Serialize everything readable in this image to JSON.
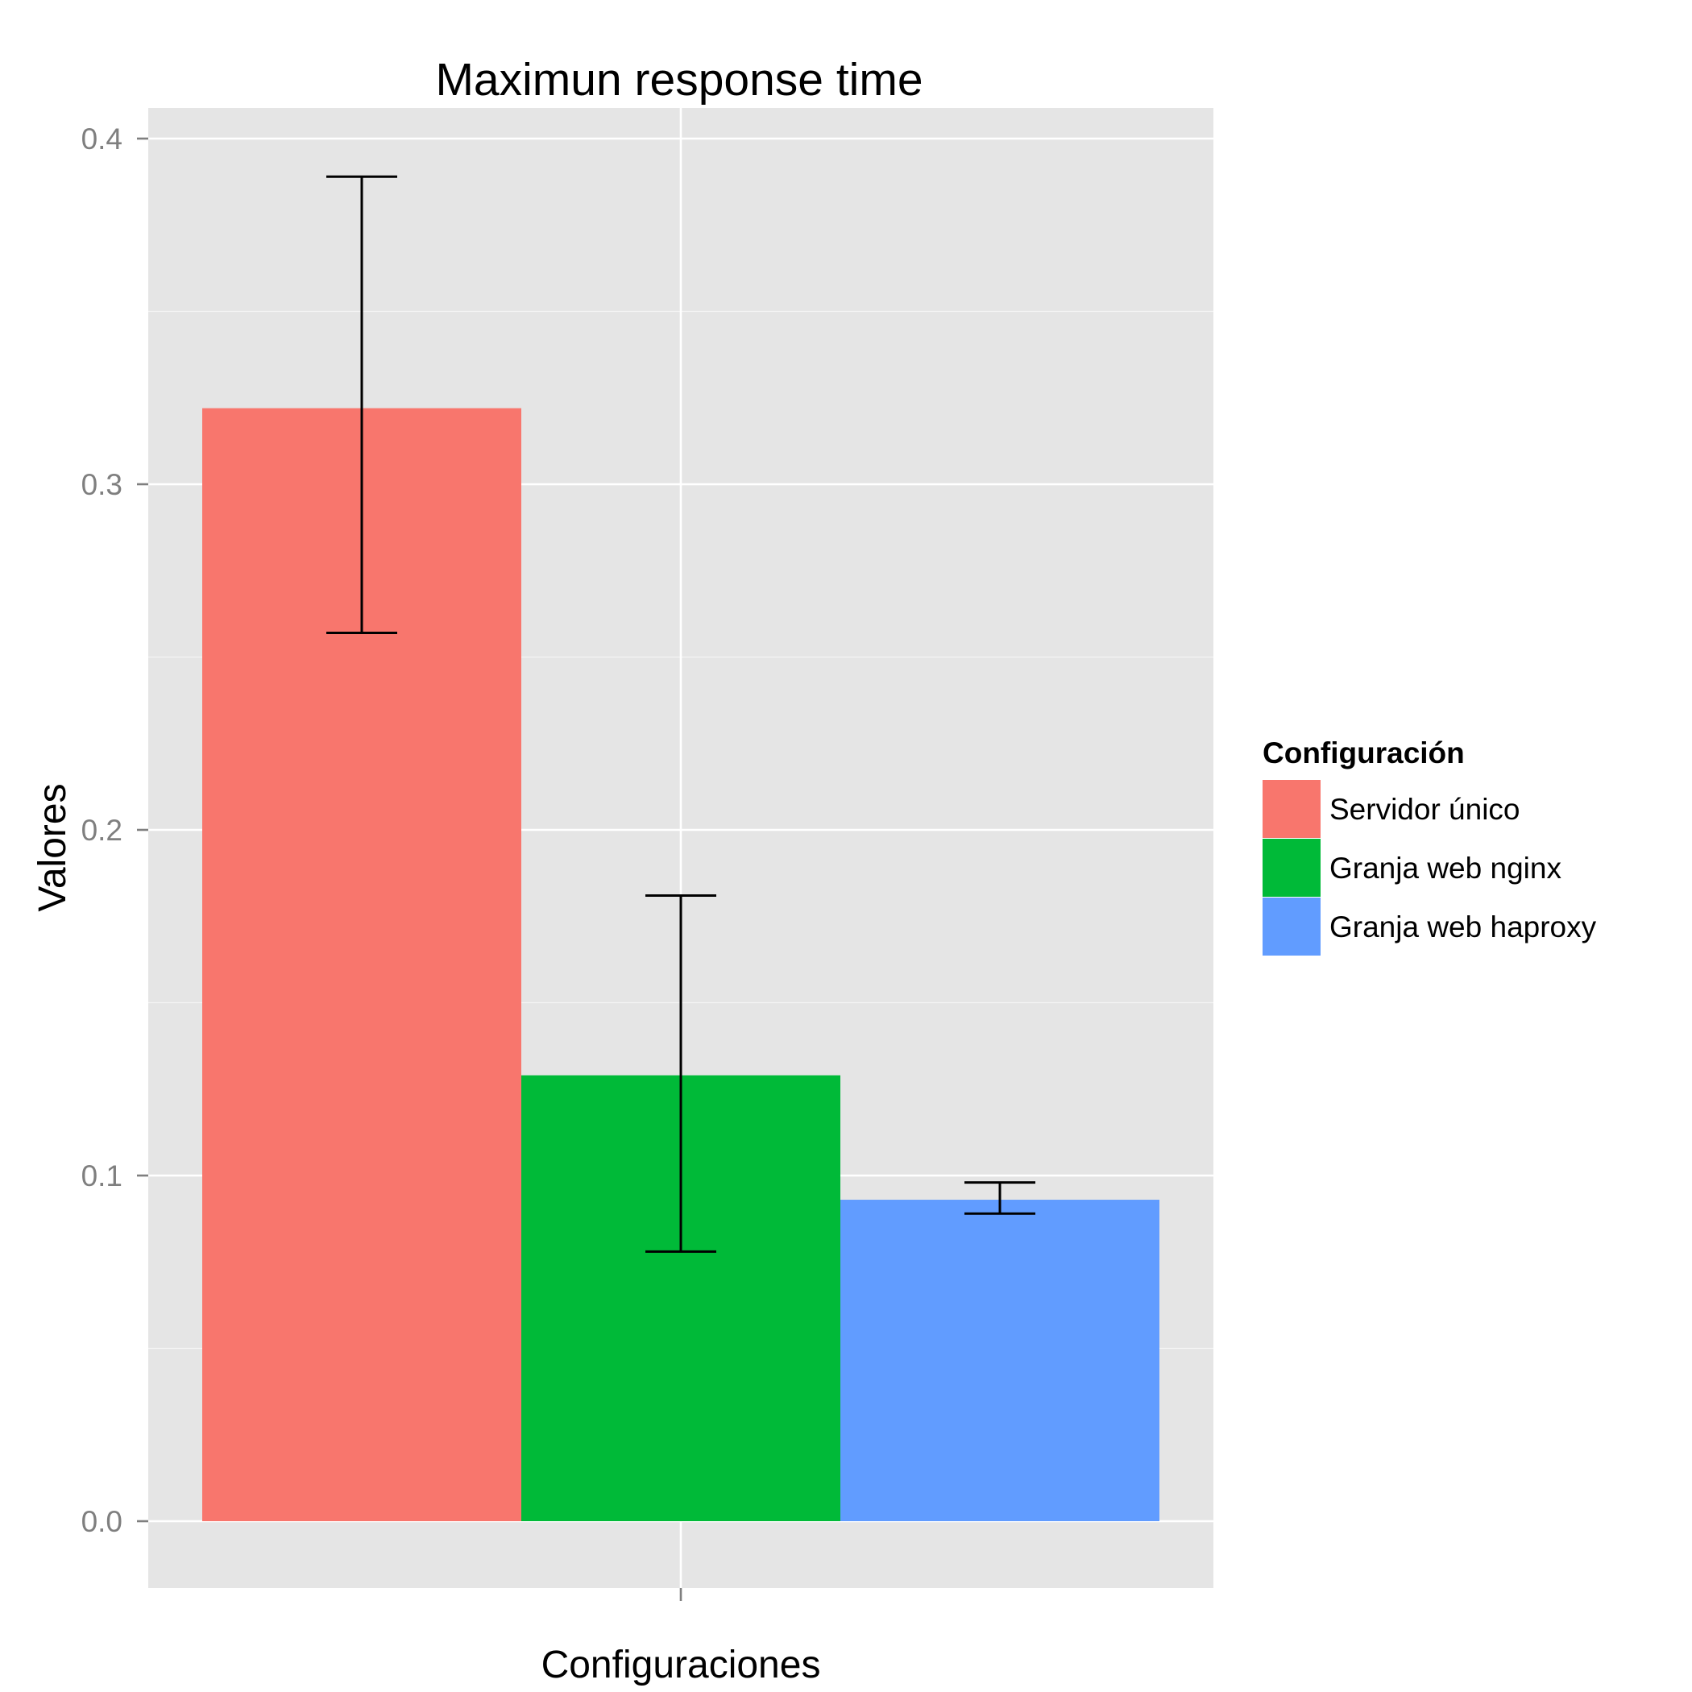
{
  "chart_data": {
    "type": "bar",
    "title": "Maximun response time",
    "xlabel": "Configuraciones",
    "ylabel": "Valores",
    "ylim": [
      -0.02,
      0.409
    ],
    "yticks": [
      "0.0",
      "0.1",
      "0.2",
      "0.3",
      "0.4"
    ],
    "ytick_values": [
      0.0,
      0.1,
      0.2,
      0.3,
      0.4
    ],
    "grid": true,
    "legend": {
      "title": "Configuración",
      "placement": "right"
    },
    "series": [
      {
        "name": "Servidor único",
        "value": 0.322,
        "error_low": 0.257,
        "error_high": 0.389,
        "color": "#F8766D"
      },
      {
        "name": "Granja web nginx",
        "value": 0.129,
        "error_low": 0.078,
        "error_high": 0.181,
        "color": "#00BA38"
      },
      {
        "name": "Granja web haproxy",
        "value": 0.093,
        "error_low": 0.089,
        "error_high": 0.098,
        "color": "#619CFF"
      }
    ],
    "panel_background": "#E5E5E5",
    "gridline_color": "#FFFFFF"
  }
}
